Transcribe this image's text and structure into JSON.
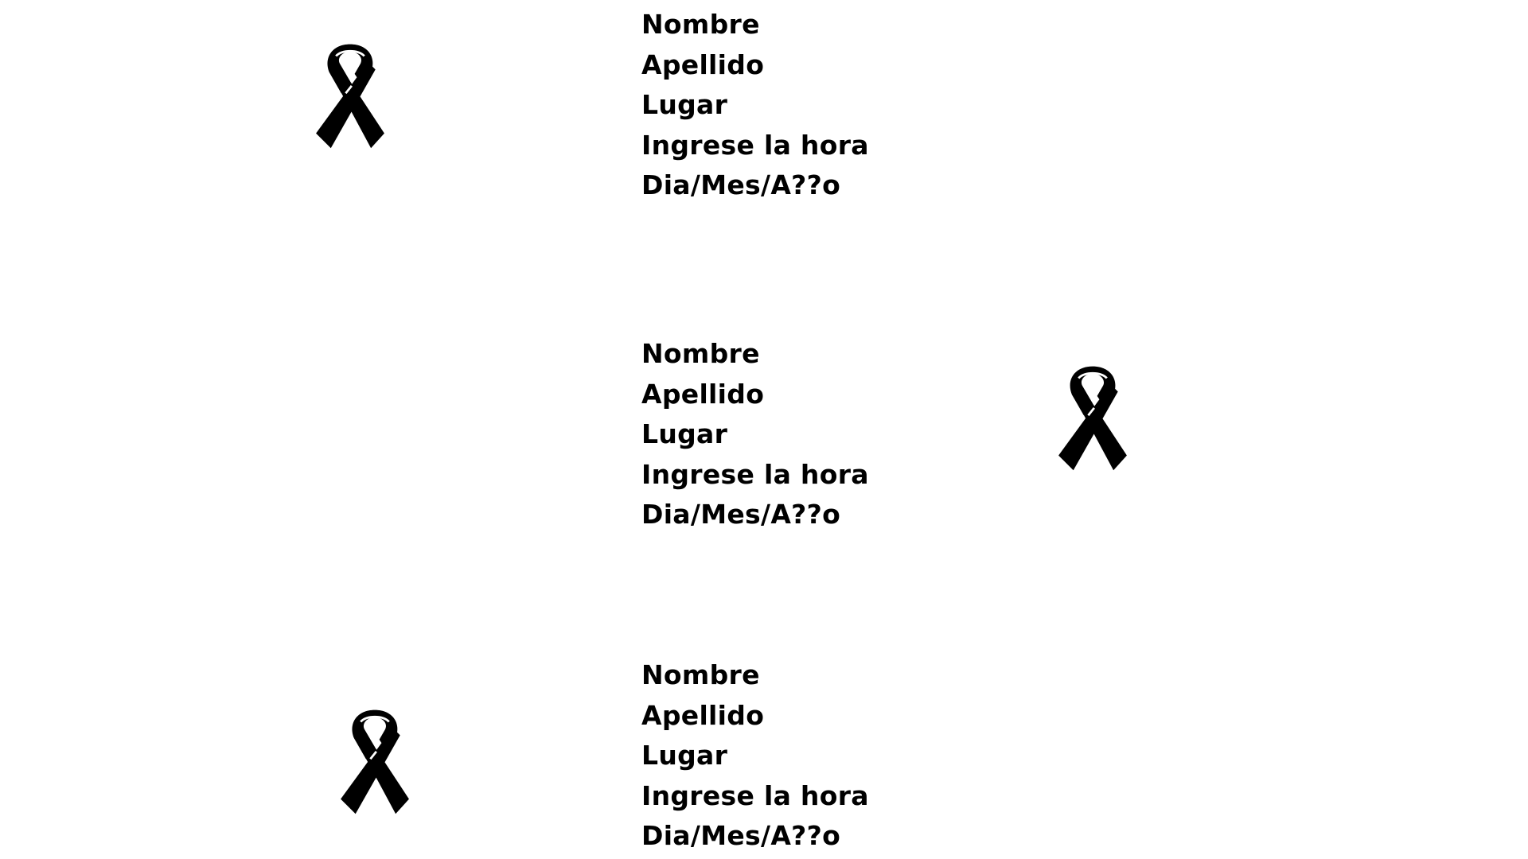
{
  "colors": {
    "background": "#ffffff",
    "text": "#000000",
    "ribbon": "#000000"
  },
  "blocks": [
    {
      "nombre": "Nombre",
      "apellido": "Apellido",
      "lugar": "Lugar",
      "hora": "Ingrese la hora",
      "fecha": "Dia/Mes/A??o"
    },
    {
      "nombre": "Nombre",
      "apellido": "Apellido",
      "lugar": "Lugar",
      "hora": "Ingrese la hora",
      "fecha": "Dia/Mes/A??o"
    },
    {
      "nombre": "Nombre",
      "apellido": "Apellido",
      "lugar": "Lugar",
      "hora": "Ingrese la hora",
      "fecha": "Dia/Mes/A??o"
    }
  ],
  "icons": [
    "mourning-ribbon-icon",
    "mourning-ribbon-icon",
    "mourning-ribbon-icon"
  ]
}
